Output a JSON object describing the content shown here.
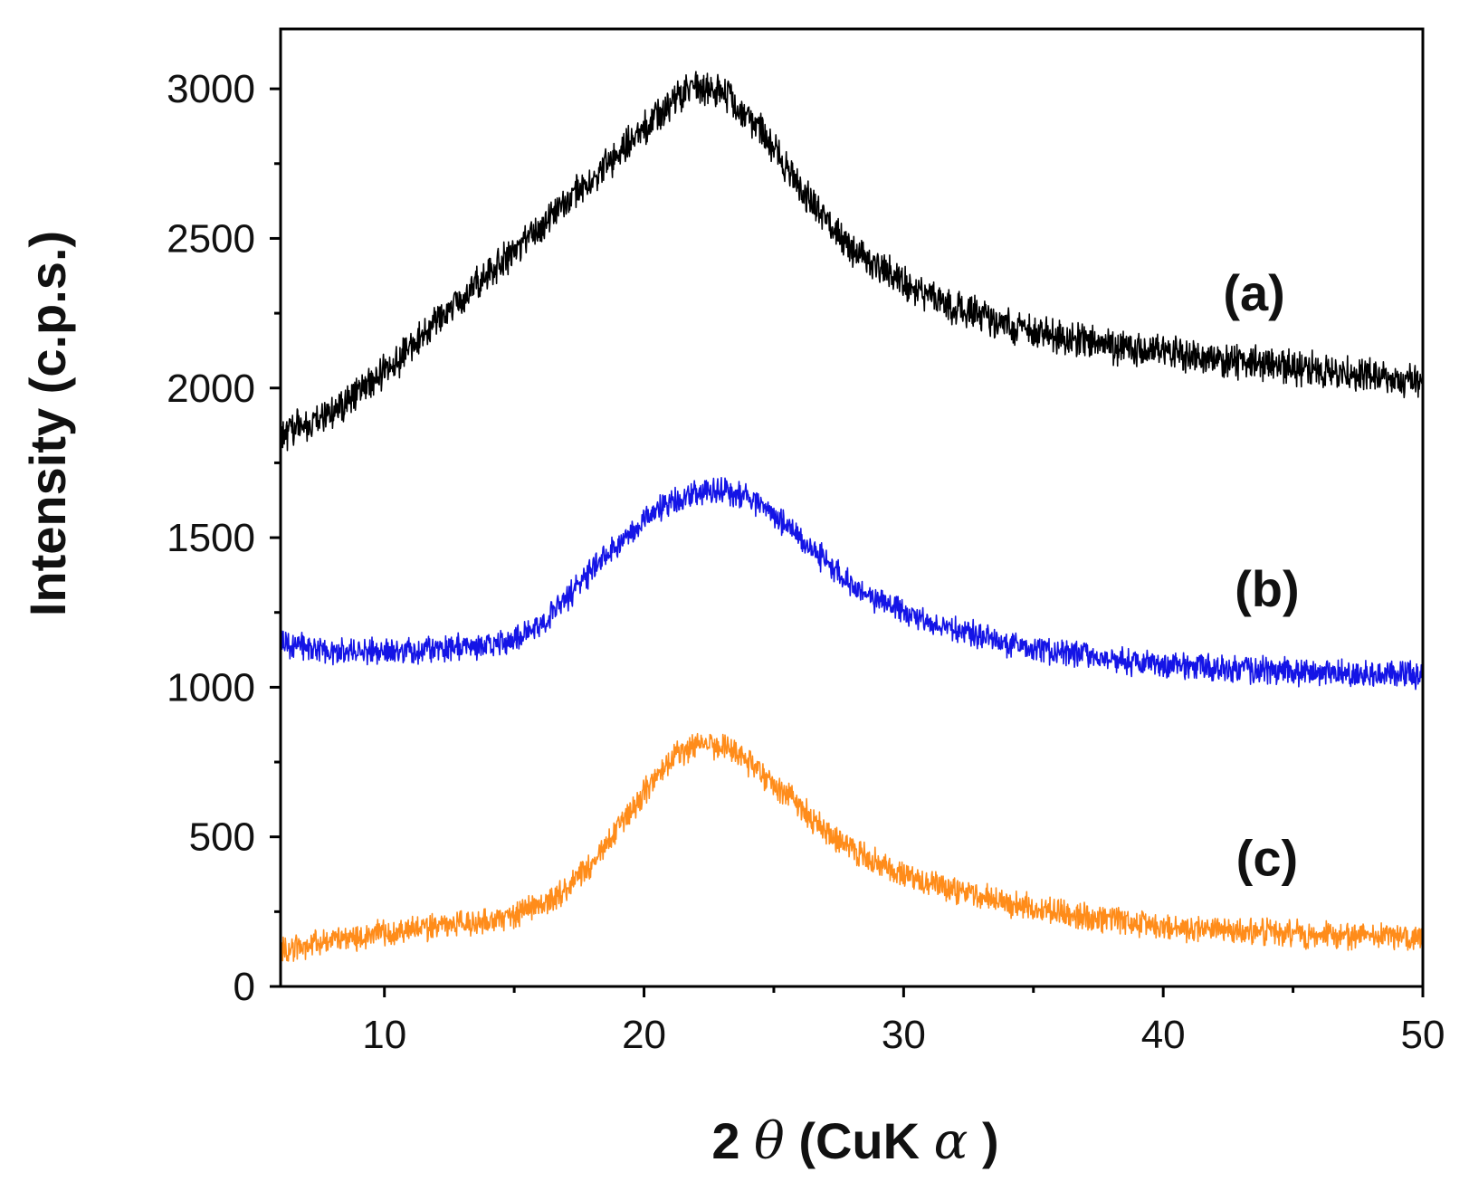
{
  "chart_data": {
    "type": "line",
    "title": "",
    "xlabel": {
      "prefix": "2",
      "theta": "θ",
      "middle": " (CuK",
      "alpha": "α",
      "suffix": ")"
    },
    "ylabel": "Intensity (c.p.s.)",
    "xlim": [
      6,
      50
    ],
    "ylim": [
      0,
      3200
    ],
    "x_ticks": [
      10,
      20,
      30,
      40,
      50
    ],
    "x_tick_labels": [
      "10",
      "20",
      "30",
      "40",
      "50"
    ],
    "x_minor_ticks": [
      15,
      25,
      35,
      45
    ],
    "y_ticks": [
      0,
      500,
      1000,
      1500,
      2000,
      2500,
      3000
    ],
    "y_tick_labels": [
      "0",
      "500",
      "1000",
      "1500",
      "2000",
      "2500",
      "3000"
    ],
    "y_minor_ticks": [
      250,
      750,
      1250,
      1750,
      2250,
      2750
    ],
    "grid": false,
    "series": [
      {
        "name": "(a)",
        "color": "#000000",
        "noise": 45,
        "label_position": [
          43.5,
          2260
        ],
        "points": [
          [
            6,
            1840
          ],
          [
            8,
            1920
          ],
          [
            10,
            2050
          ],
          [
            12,
            2220
          ],
          [
            14,
            2380
          ],
          [
            16,
            2540
          ],
          [
            18,
            2700
          ],
          [
            20,
            2860
          ],
          [
            21,
            2950
          ],
          [
            22,
            3010
          ],
          [
            23,
            2990
          ],
          [
            24,
            2920
          ],
          [
            25,
            2800
          ],
          [
            26,
            2670
          ],
          [
            27,
            2560
          ],
          [
            28,
            2460
          ],
          [
            30,
            2350
          ],
          [
            32,
            2270
          ],
          [
            34,
            2210
          ],
          [
            36,
            2170
          ],
          [
            38,
            2140
          ],
          [
            40,
            2120
          ],
          [
            42,
            2100
          ],
          [
            44,
            2080
          ],
          [
            46,
            2060
          ],
          [
            48,
            2040
          ],
          [
            50,
            2020
          ]
        ]
      },
      {
        "name": "(b)",
        "color": "#1414e6",
        "noise": 35,
        "label_position": [
          44,
          1270
        ],
        "points": [
          [
            6,
            1150
          ],
          [
            8,
            1120
          ],
          [
            10,
            1120
          ],
          [
            12,
            1130
          ],
          [
            14,
            1140
          ],
          [
            15,
            1160
          ],
          [
            16,
            1210
          ],
          [
            17,
            1290
          ],
          [
            18,
            1390
          ],
          [
            19,
            1480
          ],
          [
            20,
            1560
          ],
          [
            21,
            1620
          ],
          [
            22,
            1650
          ],
          [
            23,
            1660
          ],
          [
            24,
            1630
          ],
          [
            25,
            1580
          ],
          [
            26,
            1500
          ],
          [
            27,
            1420
          ],
          [
            28,
            1340
          ],
          [
            29,
            1290
          ],
          [
            30,
            1250
          ],
          [
            32,
            1190
          ],
          [
            34,
            1150
          ],
          [
            36,
            1120
          ],
          [
            38,
            1090
          ],
          [
            40,
            1075
          ],
          [
            42,
            1065
          ],
          [
            44,
            1055
          ],
          [
            46,
            1050
          ],
          [
            48,
            1045
          ],
          [
            50,
            1040
          ]
        ]
      },
      {
        "name": "(c)",
        "color": "#ff8c1a",
        "noise": 35,
        "label_position": [
          44,
          370
        ],
        "points": [
          [
            6,
            120
          ],
          [
            8,
            155
          ],
          [
            10,
            180
          ],
          [
            12,
            200
          ],
          [
            14,
            220
          ],
          [
            15,
            240
          ],
          [
            16,
            270
          ],
          [
            17,
            320
          ],
          [
            18,
            410
          ],
          [
            19,
            530
          ],
          [
            20,
            650
          ],
          [
            21,
            760
          ],
          [
            22,
            810
          ],
          [
            23,
            800
          ],
          [
            24,
            750
          ],
          [
            25,
            680
          ],
          [
            26,
            600
          ],
          [
            27,
            520
          ],
          [
            28,
            460
          ],
          [
            29,
            410
          ],
          [
            30,
            370
          ],
          [
            32,
            320
          ],
          [
            34,
            280
          ],
          [
            36,
            250
          ],
          [
            38,
            220
          ],
          [
            40,
            200
          ],
          [
            42,
            190
          ],
          [
            44,
            180
          ],
          [
            46,
            175
          ],
          [
            48,
            170
          ],
          [
            50,
            160
          ]
        ]
      }
    ]
  }
}
